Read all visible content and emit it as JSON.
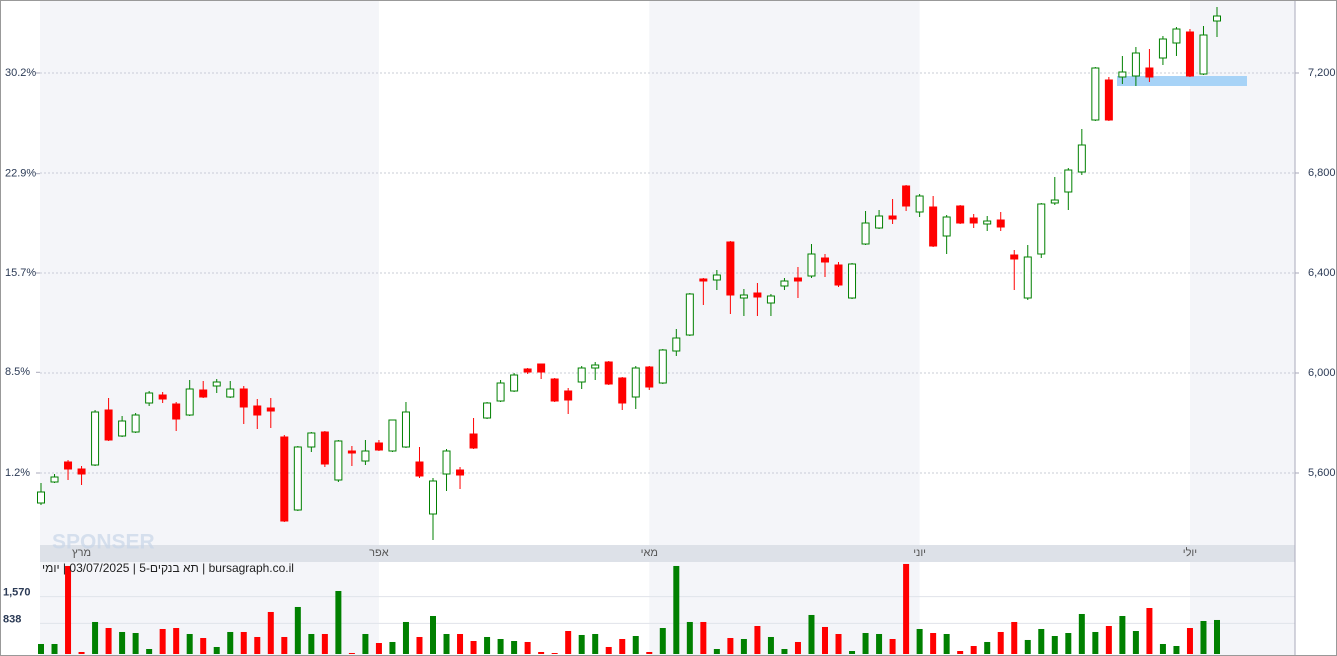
{
  "chart_data": {
    "type": "candlestick",
    "info": "bursagraph.co.il | תא בנקים-5 | 03/07/2025 | יומי",
    "watermark": "SPONSER",
    "categories": [
      null,
      null,
      null,
      "מרץ",
      null,
      null,
      null,
      null,
      null,
      null,
      null,
      null,
      null,
      null,
      null,
      null,
      null,
      null,
      null,
      null,
      null,
      null,
      null,
      null,
      null,
      "אפר",
      null,
      null,
      null,
      null,
      null,
      null,
      null,
      null,
      null,
      null,
      null,
      null,
      null,
      null,
      null,
      null,
      null,
      null,
      null,
      "מאי",
      null,
      null,
      null,
      null,
      null,
      null,
      null,
      null,
      null,
      null,
      null,
      null,
      null,
      null,
      null,
      null,
      null,
      null,
      null,
      "יוני",
      null,
      null,
      null,
      null,
      null,
      null,
      null,
      null,
      null,
      null,
      null,
      null,
      null,
      null,
      null,
      null,
      null,
      null,
      null,
      "יולי",
      null,
      null
    ],
    "open": [
      5480,
      5564,
      5644,
      5616,
      5632,
      5852,
      5748,
      5764,
      5880,
      5912,
      5876,
      5832,
      5932,
      5948,
      5904,
      5936,
      5868,
      5860,
      5744,
      5452,
      5704,
      5764,
      5572,
      5688,
      5648,
      5720,
      5688,
      5704,
      5644,
      5436,
      5596,
      5612,
      5756,
      5820,
      5888,
      5928,
      6016,
      6036,
      5976,
      5928,
      5964,
      6020,
      6044,
      5980,
      5904,
      6024,
      5960,
      6088,
      6152,
      6376,
      6372,
      6524,
      6300,
      6320,
      6280,
      6348,
      6380,
      6388,
      6460,
      6432,
      6300,
      6516,
      6580,
      6628,
      6748,
      6644,
      6664,
      6548,
      6668,
      6620,
      6596,
      6612,
      6472,
      6300,
      6476,
      6680,
      6724,
      6804,
      7012,
      7172,
      7184,
      7188,
      7220,
      7260,
      7320,
      7364,
      7196,
      7408
    ],
    "high": [
      5560,
      5596,
      5652,
      5628,
      5852,
      5900,
      5828,
      5840,
      5928,
      5924,
      5884,
      5972,
      5968,
      5976,
      5968,
      5948,
      5896,
      5900,
      5752,
      5708,
      5764,
      5768,
      5732,
      5708,
      5732,
      5732,
      5812,
      5884,
      5704,
      5580,
      5696,
      5624,
      5820,
      5884,
      5972,
      6000,
      6020,
      6036,
      5980,
      5940,
      6028,
      6044,
      6048,
      5984,
      6028,
      6028,
      6096,
      6176,
      6320,
      6380,
      6412,
      6528,
      6336,
      6360,
      6316,
      6380,
      6424,
      6516,
      6476,
      6444,
      6440,
      6648,
      6652,
      6696,
      6752,
      6716,
      6708,
      6632,
      6672,
      6636,
      6628,
      6644,
      6492,
      6512,
      6680,
      6784,
      6820,
      6976,
      7224,
      7184,
      7268,
      7304,
      7296,
      7348,
      7384,
      7376,
      7388,
      7464
    ],
    "low": [
      5472,
      5560,
      5572,
      5552,
      5628,
      5728,
      5744,
      5760,
      5868,
      5880,
      5768,
      5828,
      5900,
      5920,
      5900,
      5796,
      5776,
      5780,
      5404,
      5448,
      5684,
      5624,
      5564,
      5628,
      5632,
      5688,
      5684,
      5700,
      5580,
      5332,
      5528,
      5536,
      5696,
      5816,
      5884,
      5924,
      5996,
      5976,
      5884,
      5836,
      5936,
      5972,
      5952,
      5852,
      5856,
      5932,
      5956,
      6068,
      6148,
      6272,
      6332,
      6236,
      6228,
      6228,
      6228,
      6332,
      6300,
      6380,
      6384,
      6344,
      6296,
      6512,
      6576,
      6596,
      6648,
      6624,
      6504,
      6476,
      6596,
      6580,
      6568,
      6568,
      6332,
      6292,
      6460,
      6672,
      6652,
      6792,
      7008,
      7008,
      7156,
      7148,
      7164,
      7232,
      7268,
      7184,
      7192,
      7344
    ],
    "close": [
      5524,
      5584,
      5616,
      5596,
      5844,
      5732,
      5808,
      5832,
      5920,
      5896,
      5816,
      5936,
      5904,
      5964,
      5936,
      5864,
      5832,
      5848,
      5408,
      5704,
      5760,
      5636,
      5728,
      5680,
      5688,
      5692,
      5812,
      5844,
      5588,
      5568,
      5688,
      5592,
      5700,
      5880,
      5960,
      5992,
      6004,
      6004,
      5888,
      5892,
      6020,
      6032,
      5956,
      5880,
      6020,
      5944,
      6092,
      6140,
      6316,
      6368,
      6392,
      6312,
      6312,
      6304,
      6308,
      6368,
      6368,
      6476,
      6444,
      6352,
      6436,
      6600,
      6628,
      6616,
      6668,
      6708,
      6508,
      6624,
      6600,
      6600,
      6608,
      6584,
      6456,
      6464,
      6676,
      6692,
      6812,
      6912,
      7220,
      7012,
      7204,
      7280,
      7184,
      7336,
      7376,
      7188,
      7352,
      7428
    ],
    "volume": [
      274,
      274,
      2411,
      55,
      877,
      712,
      603,
      575,
      137,
      685,
      712,
      548,
      438,
      192,
      603,
      603,
      466,
      1151,
      466,
      1288,
      548,
      548,
      1726,
      27,
      548,
      301,
      329,
      877,
      466,
      1041,
      548,
      548,
      356,
      466,
      411,
      356,
      329,
      55,
      27,
      630,
      521,
      548,
      192,
      411,
      493,
      55,
      712,
      2411,
      877,
      877,
      137,
      438,
      411,
      767,
      466,
      137,
      329,
      1069,
      740,
      548,
      82,
      575,
      548,
      411,
      2466,
      685,
      575,
      548,
      82,
      219,
      329,
      603,
      877,
      384,
      685,
      493,
      575,
      1096,
      603,
      767,
      1041,
      630,
      1260,
      274,
      219,
      712,
      904,
      932
    ],
    "up_color": "#008000",
    "down_color": "#ff0000",
    "ylim": [
      5312,
      7492
    ],
    "yticks": [
      {
        "value": 5600,
        "label": "5,600"
      },
      {
        "value": 6000,
        "label": "6,000"
      },
      {
        "value": 6400,
        "label": "6,400"
      },
      {
        "value": 6800,
        "label": "6,800"
      },
      {
        "value": 7200,
        "label": "7,200"
      }
    ],
    "y2lim": [
      -4.02,
      35.49
    ],
    "y2ticks": [
      {
        "value": 1.2,
        "label": "1.2%"
      },
      {
        "value": 8.5,
        "label": "8.5%"
      },
      {
        "value": 15.7,
        "label": "15.7%"
      },
      {
        "value": 22.9,
        "label": "22.9%"
      },
      {
        "value": 30.2,
        "label": "30.2%"
      }
    ],
    "volume_ylim": [
      0,
      2520
    ],
    "volume_ticks": [
      838,
      {
        "value": 1570,
        "label": "1,570"
      }
    ],
    "grid": true
  }
}
